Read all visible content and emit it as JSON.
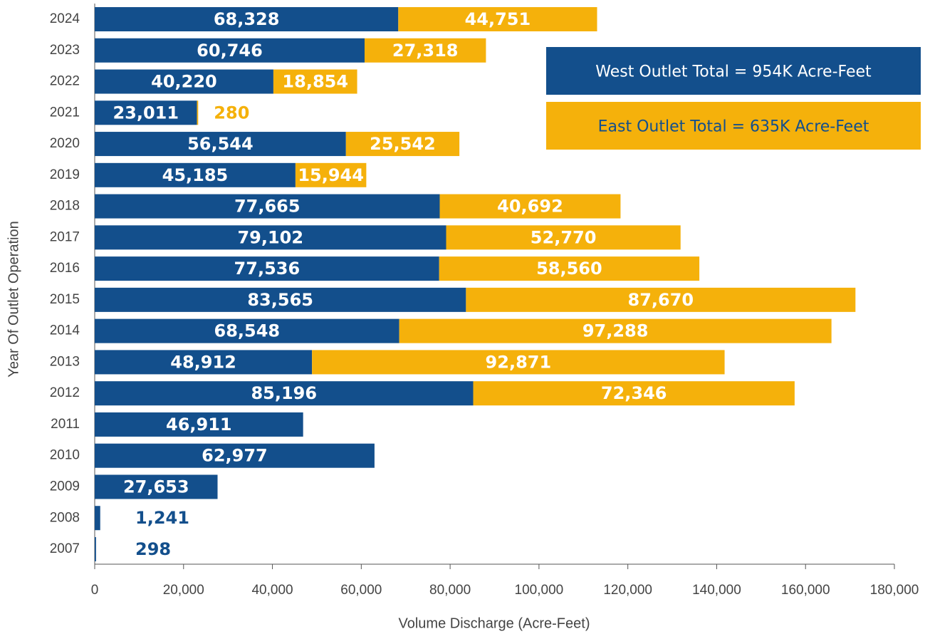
{
  "chart_data": {
    "type": "bar",
    "orientation": "horizontal",
    "stacked": true,
    "xlabel": "Volume Discharge (Acre-Feet)",
    "ylabel": "Year Of Outlet Operation",
    "categories": [
      "2024",
      "2023",
      "2022",
      "2021",
      "2020",
      "2019",
      "2018",
      "2017",
      "2016",
      "2015",
      "2014",
      "2013",
      "2012",
      "2011",
      "2010",
      "2009",
      "2008",
      "2007"
    ],
    "series": [
      {
        "name": "West Outlet Total = 954K Acre-Feet",
        "color": "#134f8c",
        "values": [
          68328,
          60746,
          40220,
          23011,
          56544,
          45185,
          77665,
          79102,
          77536,
          83565,
          68548,
          48912,
          85196,
          46911,
          62977,
          27653,
          1241,
          298
        ],
        "value_labels": [
          "68,328",
          "60,746",
          "40,220",
          "23,011",
          "56,544",
          "45,185",
          "77,665",
          "79,102",
          "77,536",
          "83,565",
          "68,548",
          "48,912",
          "85,196",
          "46,911",
          "62,977",
          "27,653",
          "1,241",
          "298"
        ]
      },
      {
        "name": "East Outlet Total = 635K Acre-Feet",
        "color": "#f5b10b",
        "values": [
          44751,
          27318,
          18854,
          280,
          25542,
          15944,
          40692,
          52770,
          58560,
          87670,
          97288,
          92871,
          72346,
          null,
          null,
          null,
          null,
          null
        ],
        "value_labels": [
          "44,751",
          "27,318",
          "18,854",
          "280",
          "25,542",
          "15,944",
          "40,692",
          "52,770",
          "58,560",
          "87,670",
          "97,288",
          "92,871",
          "72,346",
          null,
          null,
          null,
          null,
          null
        ]
      }
    ],
    "xlim": [
      0,
      180000
    ],
    "xticks": [
      0,
      {
        "value": 20000,
        "label": "20,000"
      },
      {
        "value": 40000,
        "label": "40,000"
      },
      {
        "value": 60000,
        "label": "60,000"
      },
      {
        "value": 80000,
        "label": "80,000"
      },
      {
        "value": 100000,
        "label": "100,000"
      },
      {
        "value": 120000,
        "label": "120,000"
      },
      {
        "value": 140000,
        "label": "140,000"
      },
      {
        "value": 160000,
        "label": "160,000"
      },
      {
        "value": 180000,
        "label": "180,000"
      }
    ],
    "grid": false,
    "legend": "upper right"
  }
}
